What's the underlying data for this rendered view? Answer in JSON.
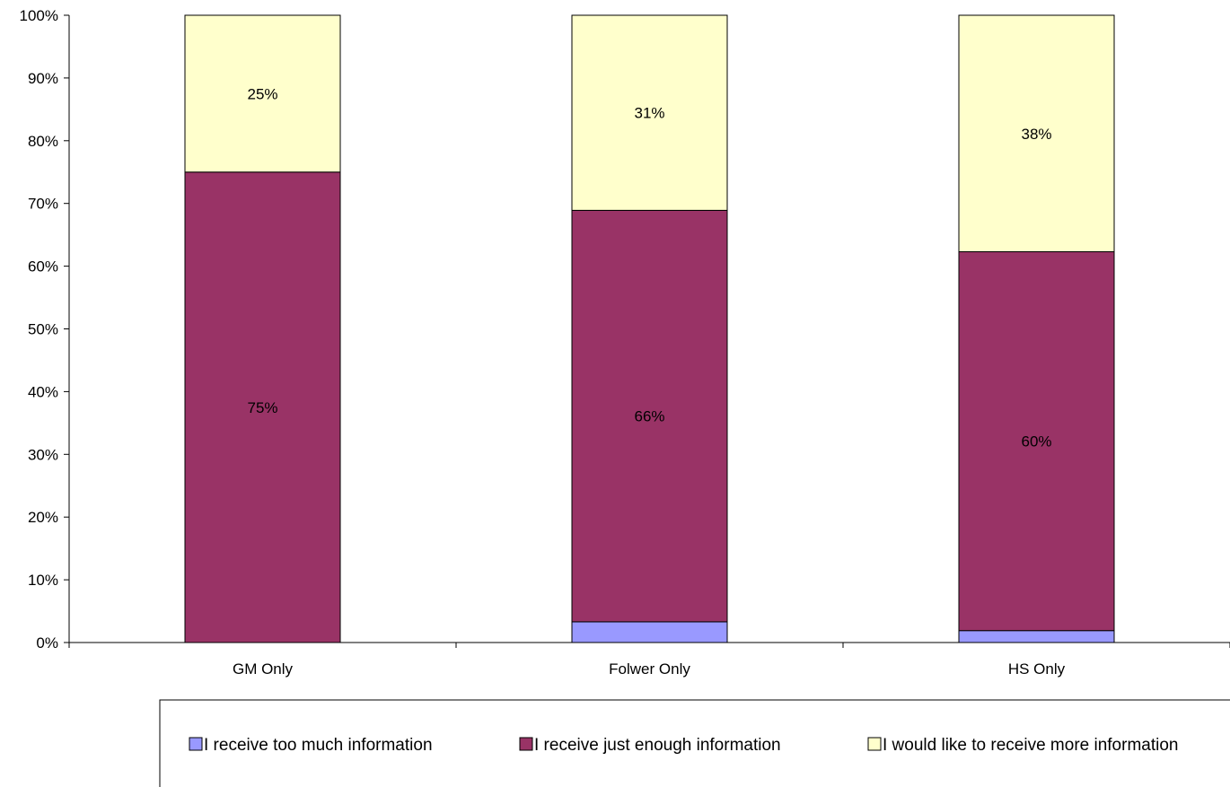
{
  "chart_data": {
    "type": "bar",
    "stacked": true,
    "percent": true,
    "categories": [
      "GM Only",
      "Folwer Only",
      "HS Only"
    ],
    "series": [
      {
        "name": "I receive too much information",
        "color": "#9999ff",
        "values": [
          0,
          3.3,
          1.9
        ]
      },
      {
        "name": "I receive just enough information",
        "color": "#993366",
        "values": [
          75,
          65.6,
          60.4
        ]
      },
      {
        "name": "I would like to receive more information",
        "color": "#ffffcc",
        "values": [
          25,
          31.1,
          37.7
        ]
      }
    ],
    "data_labels": [
      {
        "category": "GM Only",
        "series": "I receive just enough information",
        "text": "75%"
      },
      {
        "category": "GM Only",
        "series": "I would like to receive more information",
        "text": "25%"
      },
      {
        "category": "Folwer Only",
        "series": "I receive just enough information",
        "text": "66%"
      },
      {
        "category": "Folwer Only",
        "series": "I would like to receive more information",
        "text": "31%"
      },
      {
        "category": "HS Only",
        "series": "I receive just enough information",
        "text": "60%"
      },
      {
        "category": "HS Only",
        "series": "I would like to receive more information",
        "text": "38%"
      }
    ],
    "y_ticks": [
      "0%",
      "10%",
      "20%",
      "30%",
      "40%",
      "50%",
      "60%",
      "70%",
      "80%",
      "90%",
      "100%"
    ],
    "ylim": [
      0,
      100
    ],
    "grid": false,
    "legend_position": "bottom",
    "title": "",
    "xlabel": "",
    "ylabel": ""
  }
}
